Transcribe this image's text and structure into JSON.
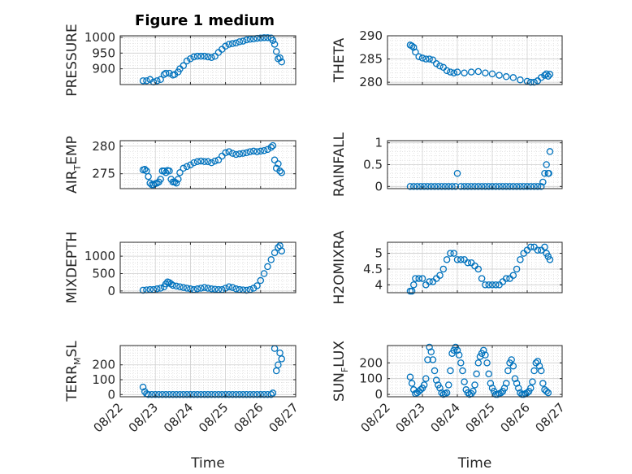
{
  "chart_data": {
    "type": "scatter",
    "title": "Figure 1 medium",
    "x_tick_labels": [
      "08/22",
      "08/23",
      "08/24",
      "08/25",
      "08/26",
      "08/27"
    ],
    "xlabel": "Time",
    "marker_color": "#0072BD",
    "grid": true,
    "panels": [
      {
        "name": "pressure",
        "ylabel": "PRESSURE",
        "ylabel_sub": "",
        "ylim": [
          850,
          1005
        ],
        "yticks": [
          900,
          950,
          1000
        ],
        "series": [
          {
            "x": [
              0.65,
              0.75,
              0.85,
              0.95,
              1.05,
              1.15,
              1.25,
              1.3,
              1.4,
              1.5,
              1.55,
              1.65,
              1.7,
              1.8,
              1.9,
              2.0,
              2.1,
              2.2,
              2.3,
              2.4,
              2.5,
              2.6,
              2.7,
              2.8,
              2.9,
              3.0,
              3.1,
              3.2,
              3.3,
              3.4,
              3.5,
              3.6,
              3.7,
              3.8,
              3.9,
              4.0,
              4.1,
              4.2,
              4.3,
              4.35,
              4.4,
              4.45,
              4.5,
              4.55,
              4.6
            ],
            "y": [
              862,
              862,
              866,
              858,
              862,
              866,
              882,
              886,
              886,
              880,
              882,
              890,
              900,
              910,
              925,
              932,
              938,
              940,
              940,
              940,
              938,
              936,
              940,
              952,
              962,
              972,
              978,
              980,
              982,
              986,
              988,
              992,
              994,
              995,
              997,
              998,
              999,
              999,
              998,
              990,
              978,
              955,
              932,
              935,
              922
            ]
          }
        ]
      },
      {
        "name": "theta",
        "ylabel": "THETA",
        "ylabel_sub": "",
        "ylim": [
          279.5,
          290
        ],
        "yticks": [
          280,
          285,
          290
        ],
        "series": [
          {
            "x": [
              0.65,
              0.7,
              0.75,
              0.8,
              0.9,
              1.0,
              1.1,
              1.2,
              1.3,
              1.4,
              1.5,
              1.6,
              1.7,
              1.8,
              1.9,
              2.0,
              2.2,
              2.4,
              2.6,
              2.8,
              3.0,
              3.2,
              3.4,
              3.6,
              3.8,
              4.0,
              4.1,
              4.2,
              4.3,
              4.4,
              4.5,
              4.55,
              4.6,
              4.65
            ],
            "y": [
              288,
              287.8,
              287.5,
              286.5,
              285.5,
              285.2,
              285,
              285,
              284.8,
              284,
              283.5,
              283.2,
              282.5,
              282.2,
              282,
              282.2,
              282,
              282.2,
              282.3,
              282,
              281.8,
              281.5,
              281.2,
              281,
              280.5,
              280.2,
              280,
              280,
              280.3,
              281,
              281.5,
              281.8,
              281.3,
              281.7
            ]
          }
        ]
      },
      {
        "name": "air-temp",
        "ylabel": "AIR",
        "ylabel_sub": "T",
        "ylabel_suffix": "EMP",
        "ylim": [
          272.3,
          281
        ],
        "yticks": [
          275,
          280
        ],
        "series": [
          {
            "x": [
              0.65,
              0.7,
              0.75,
              0.8,
              0.85,
              0.9,
              0.95,
              1.0,
              1.05,
              1.1,
              1.15,
              1.2,
              1.25,
              1.3,
              1.35,
              1.4,
              1.45,
              1.5,
              1.55,
              1.6,
              1.65,
              1.7,
              1.8,
              1.9,
              2.0,
              2.1,
              2.2,
              2.3,
              2.4,
              2.5,
              2.6,
              2.7,
              2.8,
              2.9,
              3.0,
              3.1,
              3.2,
              3.3,
              3.4,
              3.5,
              3.6,
              3.7,
              3.8,
              3.9,
              4.0,
              4.1,
              4.2,
              4.3,
              4.35,
              4.4,
              4.45,
              4.5,
              4.55,
              4.6
            ],
            "y": [
              275.7,
              275.8,
              275.5,
              274.5,
              273.3,
              273,
              273,
              273.2,
              273.3,
              273.5,
              274,
              275.5,
              275.5,
              275.2,
              275.6,
              275.5,
              274,
              273.5,
              273.5,
              273.3,
              274,
              275.2,
              276,
              276.3,
              276.6,
              277,
              277.2,
              277.3,
              277.2,
              277.2,
              277,
              277.3,
              277.5,
              278.2,
              278.8,
              279,
              278.7,
              278.5,
              278.6,
              278.7,
              278.8,
              279,
              279.1,
              279,
              279.1,
              279.2,
              279.4,
              279.8,
              280.1,
              277.5,
              276,
              276.8,
              275.5,
              275.2
            ]
          }
        ]
      },
      {
        "name": "rainfall",
        "ylabel": "RAINFALL",
        "ylabel_sub": "",
        "ylim": [
          -0.05,
          1.05
        ],
        "yticks": [
          0,
          0.5,
          1
        ],
        "series": [
          {
            "x": [
              0.65,
              0.75,
              0.85,
              0.95,
              1.05,
              1.15,
              1.25,
              1.35,
              1.45,
              1.55,
              1.65,
              1.75,
              1.85,
              1.95,
              2.0,
              2.1,
              2.2,
              2.3,
              2.4,
              2.5,
              2.6,
              2.7,
              2.8,
              2.9,
              3.0,
              3.1,
              3.2,
              3.3,
              3.4,
              3.5,
              3.6,
              3.7,
              3.8,
              3.9,
              4.0,
              4.1,
              4.2,
              4.3,
              4.4,
              4.45,
              4.5,
              4.55,
              4.6,
              4.65,
              4.62
            ],
            "y": [
              0,
              0,
              0,
              0,
              0,
              0,
              0,
              0,
              0,
              0,
              0,
              0,
              0,
              0,
              0.3,
              0,
              0,
              0,
              0,
              0,
              0,
              0,
              0,
              0,
              0,
              0,
              0,
              0,
              0,
              0,
              0,
              0,
              0,
              0,
              0,
              0,
              0,
              0,
              0,
              0.1,
              0.3,
              0.5,
              0.3,
              0.8,
              0.3
            ]
          }
        ]
      },
      {
        "name": "mixdepth",
        "ylabel": "MIXDEPTH",
        "ylabel_sub": "",
        "ylim": [
          -50,
          1400
        ],
        "yticks": [
          0,
          500,
          1000
        ],
        "series": [
          {
            "x": [
              0.65,
              0.75,
              0.85,
              0.95,
              1.05,
              1.15,
              1.25,
              1.3,
              1.35,
              1.4,
              1.45,
              1.5,
              1.6,
              1.7,
              1.8,
              1.9,
              2.0,
              2.1,
              2.2,
              2.3,
              2.4,
              2.5,
              2.6,
              2.7,
              2.8,
              2.9,
              3.0,
              3.1,
              3.2,
              3.3,
              3.4,
              3.5,
              3.6,
              3.7,
              3.8,
              3.9,
              4.0,
              4.1,
              4.2,
              4.3,
              4.4,
              4.5,
              4.55,
              4.6
            ],
            "y": [
              20,
              30,
              40,
              40,
              60,
              80,
              120,
              200,
              260,
              240,
              200,
              160,
              140,
              120,
              100,
              80,
              60,
              40,
              60,
              80,
              100,
              80,
              60,
              50,
              40,
              40,
              80,
              120,
              100,
              60,
              40,
              30,
              20,
              40,
              80,
              150,
              300,
              500,
              700,
              900,
              1100,
              1250,
              1300,
              1150
            ]
          }
        ]
      },
      {
        "name": "h2omixra",
        "ylabel": "H2OMIXRA",
        "ylabel_sub": "",
        "ylim": [
          3.75,
          5.35
        ],
        "yticks": [
          4,
          4.5,
          5
        ],
        "series": [
          {
            "x": [
              0.65,
              0.7,
              0.75,
              0.8,
              0.9,
              1.0,
              1.1,
              1.2,
              1.3,
              1.4,
              1.5,
              1.6,
              1.7,
              1.8,
              1.9,
              2.0,
              2.1,
              2.2,
              2.3,
              2.4,
              2.5,
              2.6,
              2.7,
              2.8,
              2.9,
              3.0,
              3.1,
              3.2,
              3.3,
              3.4,
              3.5,
              3.6,
              3.7,
              3.8,
              3.9,
              4.0,
              4.1,
              4.2,
              4.3,
              4.4,
              4.5,
              4.55,
              4.6,
              4.65
            ],
            "y": [
              3.8,
              3.8,
              4.0,
              4.2,
              4.2,
              4.2,
              4.0,
              4.1,
              4.1,
              4.2,
              4.3,
              4.5,
              4.8,
              5.0,
              5.0,
              4.8,
              4.8,
              4.8,
              4.7,
              4.7,
              4.6,
              4.5,
              4.2,
              4.0,
              4.0,
              4.0,
              4.0,
              4.0,
              4.1,
              4.2,
              4.2,
              4.3,
              4.5,
              4.8,
              5.0,
              5.1,
              5.2,
              5.2,
              5.1,
              5.1,
              5.2,
              5.0,
              4.9,
              4.8
            ]
          }
        ]
      },
      {
        "name": "terr-msl",
        "ylabel": "TERR",
        "ylabel_sub": "M",
        "ylabel_suffix": "SL",
        "ylim": [
          -15,
          330
        ],
        "yticks": [
          0,
          100,
          200
        ],
        "series": [
          {
            "x": [
              0.65,
              0.7,
              0.75,
              0.8,
              0.9,
              1.0,
              1.1,
              1.2,
              1.3,
              1.4,
              1.5,
              1.6,
              1.7,
              1.8,
              1.9,
              2.0,
              2.1,
              2.2,
              2.3,
              2.4,
              2.5,
              2.6,
              2.7,
              2.8,
              2.9,
              3.0,
              3.1,
              3.2,
              3.3,
              3.4,
              3.5,
              3.6,
              3.7,
              3.8,
              3.9,
              4.0,
              4.1,
              4.2,
              4.3,
              4.35,
              4.4,
              4.45,
              4.5,
              4.55,
              4.6
            ],
            "y": [
              50,
              20,
              5,
              0,
              0,
              0,
              0,
              0,
              0,
              0,
              0,
              0,
              0,
              0,
              0,
              0,
              0,
              0,
              0,
              0,
              0,
              0,
              0,
              0,
              0,
              0,
              0,
              0,
              0,
              0,
              0,
              0,
              0,
              0,
              0,
              0,
              0,
              0,
              0,
              10,
              310,
              160,
              200,
              280,
              240
            ]
          }
        ]
      },
      {
        "name": "sun-flux",
        "ylabel": "SUN",
        "ylabel_sub": "F",
        "ylabel_suffix": "LUX",
        "ylim": [
          -15,
          310
        ],
        "yticks": [
          0,
          100,
          200
        ],
        "series": [
          {
            "x": [
              0.65,
              0.7,
              0.75,
              0.8,
              0.85,
              0.9,
              0.95,
              1.0,
              1.05,
              1.1,
              1.15,
              1.2,
              1.25,
              1.3,
              1.35,
              1.4,
              1.45,
              1.5,
              1.55,
              1.6,
              1.65,
              1.7,
              1.75,
              1.8,
              1.85,
              1.9,
              1.95,
              2.0,
              2.05,
              2.1,
              2.15,
              2.2,
              2.25,
              2.3,
              2.35,
              2.4,
              2.45,
              2.5,
              2.55,
              2.6,
              2.65,
              2.7,
              2.75,
              2.8,
              2.85,
              2.9,
              2.95,
              3.0,
              3.05,
              3.1,
              3.15,
              3.2,
              3.25,
              3.3,
              3.35,
              3.4,
              3.45,
              3.5,
              3.55,
              3.6,
              3.65,
              3.7,
              3.75,
              3.8,
              3.85,
              3.9,
              3.95,
              4.0,
              4.05,
              4.1,
              4.15,
              4.2,
              4.25,
              4.3,
              4.35,
              4.4,
              4.45,
              4.5,
              4.55,
              4.6
            ],
            "y": [
              110,
              70,
              30,
              5,
              10,
              20,
              30,
              40,
              60,
              100,
              220,
              300,
              270,
              220,
              150,
              90,
              60,
              40,
              10,
              0,
              5,
              10,
              60,
              150,
              260,
              280,
              300,
              280,
              250,
              200,
              150,
              80,
              30,
              10,
              0,
              5,
              20,
              60,
              130,
              200,
              240,
              260,
              280,
              250,
              200,
              130,
              70,
              40,
              20,
              0,
              0,
              5,
              10,
              20,
              40,
              70,
              150,
              200,
              220,
              180,
              100,
              70,
              40,
              10,
              0,
              0,
              5,
              10,
              20,
              40,
              80,
              150,
              200,
              210,
              180,
              150,
              70,
              30,
              20,
              10
            ]
          }
        ]
      }
    ]
  }
}
